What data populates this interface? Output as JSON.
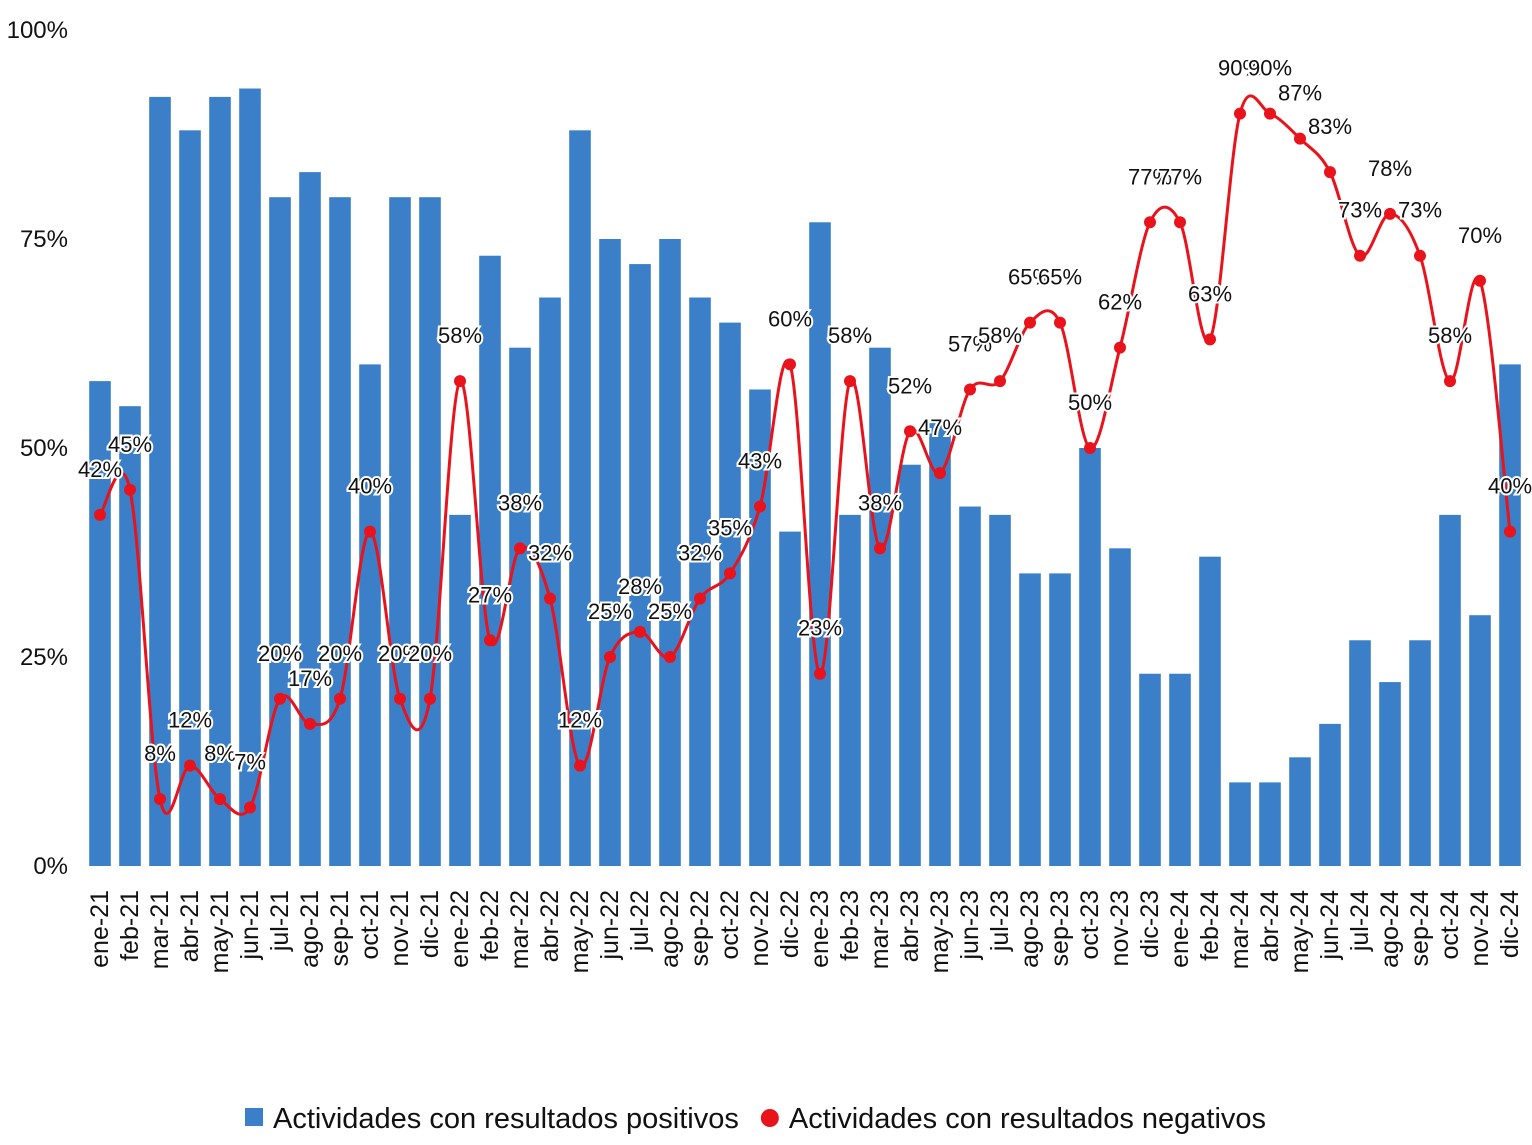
{
  "chart_data": {
    "type": "bar_line",
    "categories": [
      "ene-21",
      "feb-21",
      "mar-21",
      "abr-21",
      "may-21",
      "jun-21",
      "jul-21",
      "ago-21",
      "sep-21",
      "oct-21",
      "nov-21",
      "dic-21",
      "ene-22",
      "feb-22",
      "mar-22",
      "abr-22",
      "may-22",
      "jun-22",
      "jul-22",
      "ago-22",
      "sep-22",
      "oct-22",
      "nov-22",
      "dic-22",
      "ene-23",
      "feb-23",
      "mar-23",
      "abr-23",
      "may-23",
      "jun-23",
      "jul-23",
      "ago-23",
      "sep-23",
      "oct-23",
      "nov-23",
      "dic-23",
      "ene-24",
      "feb-24",
      "mar-24",
      "abr-24",
      "may-24",
      "jun-24",
      "jul-24",
      "ago-24",
      "sep-24",
      "oct-24",
      "nov-24",
      "dic-24"
    ],
    "series": [
      {
        "name": "Actividades con resultados positivos",
        "type": "bar",
        "color": "#3a7fc8",
        "values": [
          58,
          55,
          92,
          88,
          92,
          93,
          80,
          83,
          80,
          60,
          80,
          80,
          42,
          73,
          62,
          68,
          88,
          75,
          72,
          75,
          68,
          65,
          57,
          40,
          77,
          42,
          62,
          48,
          53,
          43,
          42,
          35,
          35,
          50,
          38,
          23,
          23,
          37,
          10,
          10,
          13,
          17,
          27,
          22,
          27,
          42,
          30,
          60
        ]
      },
      {
        "name": "Actividades con resultados negativos",
        "type": "line",
        "color": "#e8131b",
        "values": [
          42,
          45,
          8,
          12,
          8,
          7,
          20,
          17,
          20,
          40,
          20,
          20,
          58,
          27,
          38,
          32,
          12,
          25,
          28,
          25,
          32,
          35,
          43,
          60,
          23,
          58,
          38,
          52,
          47,
          57,
          58,
          65,
          65,
          50,
          62,
          77,
          77,
          63,
          90,
          90,
          87,
          83,
          73,
          78,
          73,
          58,
          70,
          40
        ],
        "value_labels": [
          "42%",
          "45%",
          "8%",
          "12%",
          "8%",
          "7%",
          "20%",
          "17%",
          "20%",
          "40%",
          "20%",
          "20%",
          "58%",
          "27%",
          "38%",
          "32%",
          "12%",
          "25%",
          "28%",
          "25%",
          "32%",
          "35%",
          "43%",
          "60%",
          "23%",
          "58%",
          "38%",
          "52%",
          "47%",
          "57%",
          "58%",
          "65%",
          "65%",
          "50%",
          "62%",
          "77%",
          "77%",
          "63%",
          "90%",
          "90%",
          "87%",
          "83%",
          "73%",
          "78%",
          "73%",
          "58%",
          "70%",
          "40%"
        ]
      }
    ],
    "ylim": [
      0,
      100
    ],
    "yticks": [
      {
        "value": 0,
        "label": "0%"
      },
      {
        "value": 25,
        "label": "25%"
      },
      {
        "value": 50,
        "label": "50%"
      },
      {
        "value": 75,
        "label": "75%"
      },
      {
        "value": 100,
        "label": "100%"
      }
    ],
    "grid": false,
    "legend": "bottom"
  }
}
